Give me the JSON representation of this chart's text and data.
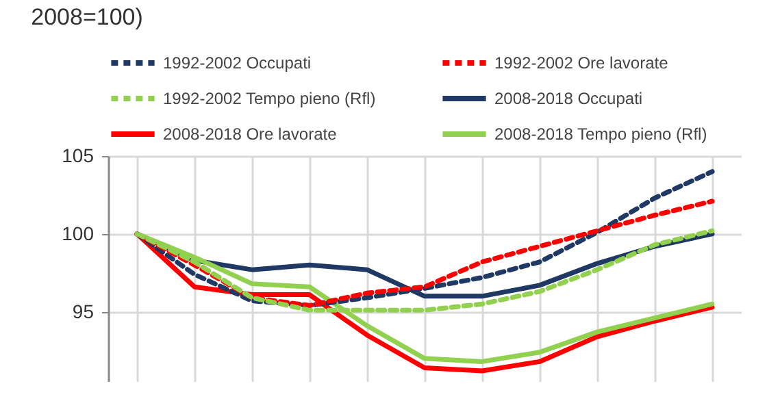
{
  "chart_data": {
    "type": "line",
    "title": "2008=100)",
    "categories": [
      null,
      null,
      null,
      null,
      null,
      null,
      null,
      null,
      null,
      null,
      null
    ],
    "series": [
      {
        "name": "1992-2002 Occupati",
        "color": "#1f3864",
        "line_style": "dashed",
        "values": [
          100,
          97.4,
          95.7,
          95.4,
          95.9,
          96.5,
          97.2,
          98.2,
          100.1,
          102.3,
          104.0
        ]
      },
      {
        "name": "1992-2002 Ore lavorate",
        "color": "#ff0000",
        "line_style": "dashed",
        "values": [
          100,
          98.0,
          95.9,
          95.4,
          96.2,
          96.6,
          98.2,
          99.2,
          100.2,
          101.2,
          102.1
        ]
      },
      {
        "name": "1992-2002 Tempo pieno (Rfl)",
        "color": "#92d050",
        "line_style": "dashed",
        "values": [
          100,
          98.2,
          95.9,
          95.1,
          95.1,
          95.1,
          95.5,
          96.3,
          97.7,
          99.3,
          100.2
        ]
      },
      {
        "name": "2008-2018 Occupati",
        "color": "#1f3864",
        "line_style": "solid",
        "values": [
          100,
          98.3,
          97.7,
          98.0,
          97.7,
          96.0,
          96.0,
          96.7,
          98.1,
          99.2,
          100.0
        ]
      },
      {
        "name": "2008-2018 Ore lavorate",
        "color": "#ff0000",
        "line_style": "solid",
        "values": [
          100,
          96.6,
          96.1,
          96.1,
          93.5,
          91.4,
          91.2,
          91.8,
          93.4,
          94.4,
          95.3
        ]
      },
      {
        "name": "2008-2018 Tempo pieno (Rfl)",
        "color": "#92d050",
        "line_style": "solid",
        "values": [
          100,
          98.5,
          96.8,
          96.6,
          94.1,
          92.0,
          91.8,
          92.4,
          93.7,
          94.6,
          95.5
        ]
      }
    ],
    "ylim": [
      90.5,
      105
    ],
    "yticks": [
      95,
      100,
      105
    ],
    "grid": true,
    "legend": "top",
    "tick_labels": "y",
    "marker": "none"
  }
}
